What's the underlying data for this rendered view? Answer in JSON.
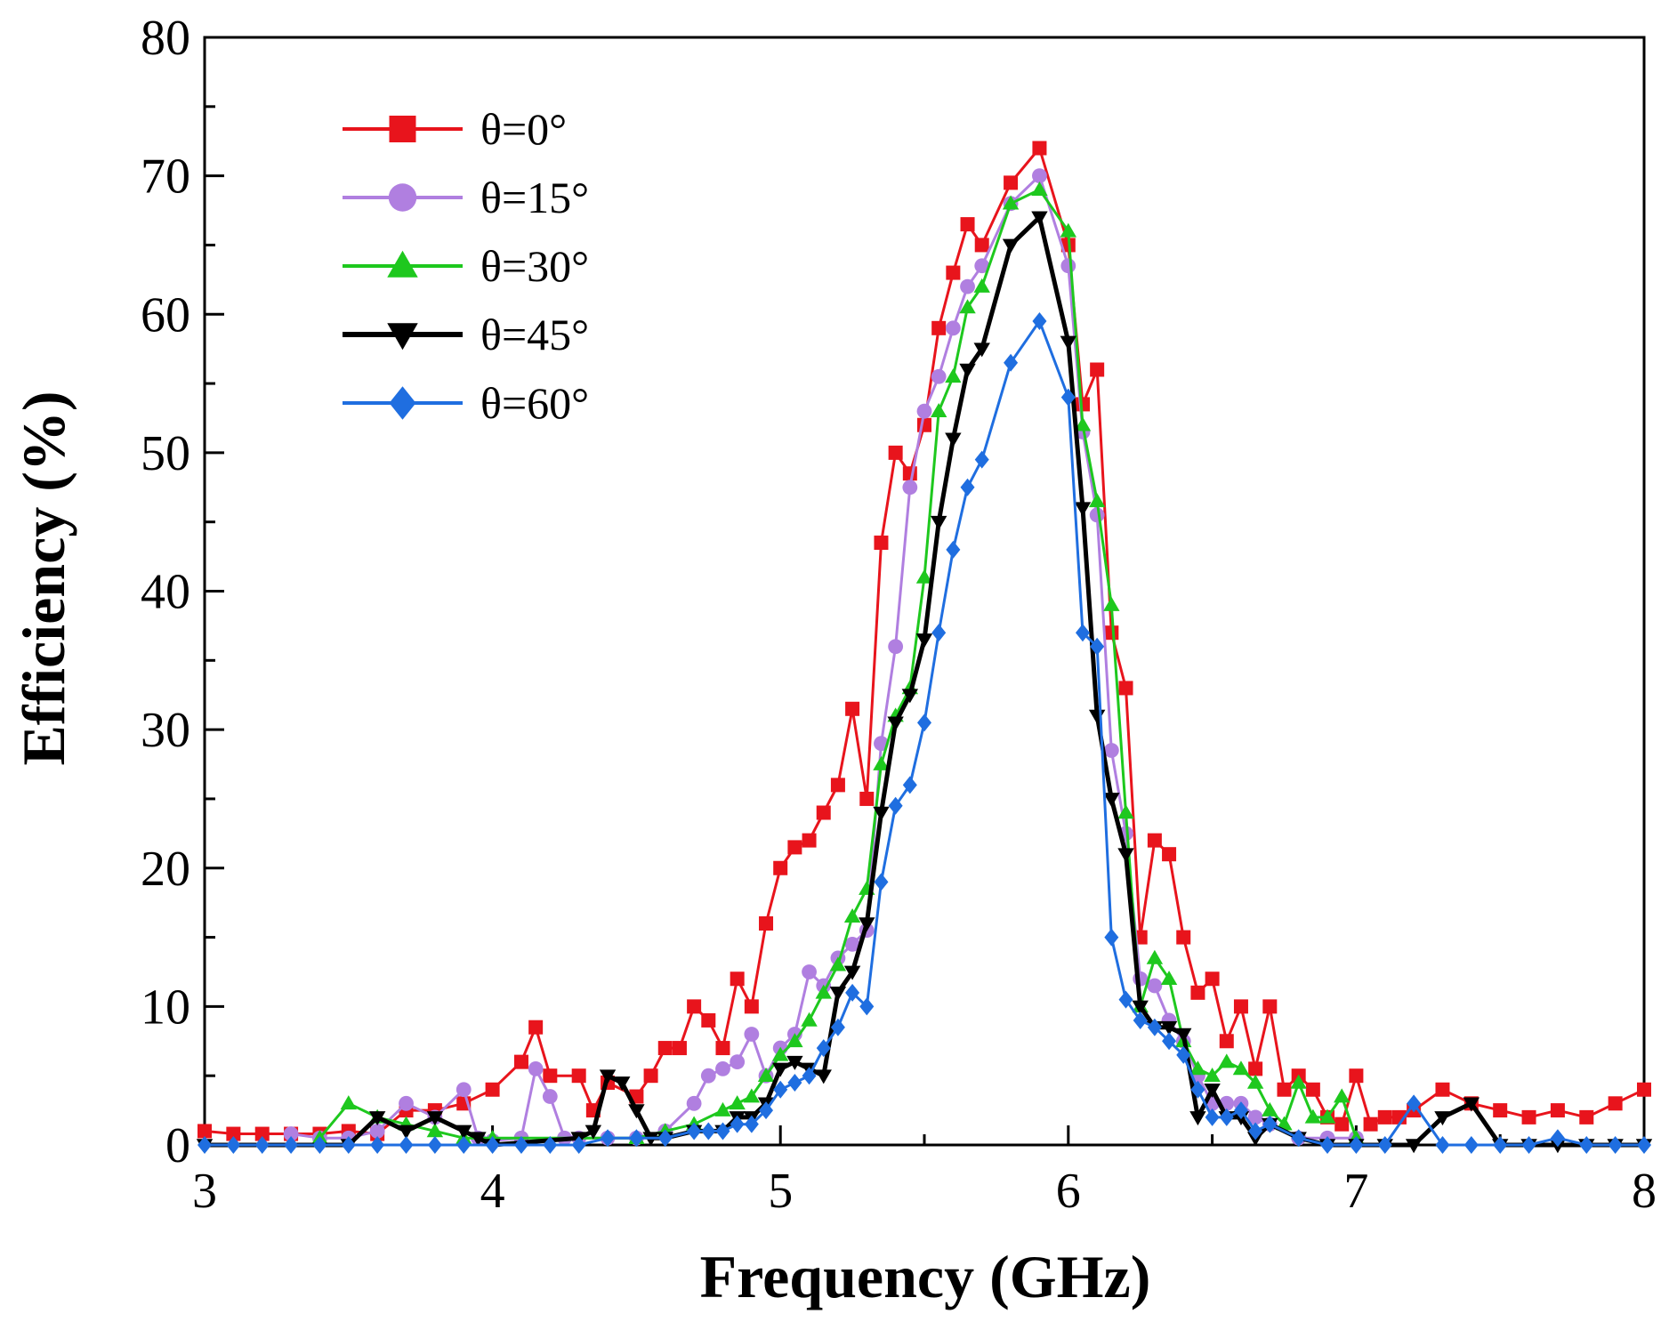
{
  "chart_data": {
    "type": "line",
    "title": "",
    "xlabel": "Frequency (GHz)",
    "ylabel": "Efficiency (%)",
    "xlim": [
      3,
      8
    ],
    "ylim": [
      0,
      80
    ],
    "xticks": [
      3,
      4,
      5,
      6,
      7,
      8
    ],
    "yticks": [
      0,
      10,
      20,
      30,
      40,
      50,
      60,
      70,
      80
    ],
    "x_minor_step": 0.5,
    "y_minor_step": 5,
    "grid": false,
    "legend_position": "top-left",
    "series": [
      {
        "name": "θ=0°",
        "color": "#e8141c",
        "marker": "square",
        "line_width": 3,
        "x": [
          3.0,
          3.1,
          3.2,
          3.3,
          3.4,
          3.5,
          3.6,
          3.7,
          3.8,
          3.9,
          4.0,
          4.1,
          4.15,
          4.2,
          4.3,
          4.35,
          4.4,
          4.5,
          4.55,
          4.6,
          4.65,
          4.7,
          4.75,
          4.8,
          4.85,
          4.9,
          4.95,
          5.0,
          5.05,
          5.1,
          5.15,
          5.2,
          5.25,
          5.3,
          5.35,
          5.4,
          5.45,
          5.5,
          5.55,
          5.6,
          5.65,
          5.7,
          5.8,
          5.9,
          6.0,
          6.05,
          6.1,
          6.15,
          6.2,
          6.25,
          6.3,
          6.35,
          6.4,
          6.45,
          6.5,
          6.55,
          6.6,
          6.65,
          6.7,
          6.75,
          6.8,
          6.85,
          6.9,
          6.95,
          7.0,
          7.05,
          7.1,
          7.15,
          7.2,
          7.3,
          7.4,
          7.5,
          7.6,
          7.7,
          7.8,
          7.9,
          8.0
        ],
        "values": [
          1.0,
          0.8,
          0.8,
          0.8,
          0.8,
          1.0,
          0.8,
          2.5,
          2.5,
          3.0,
          4.0,
          6.0,
          8.5,
          5.0,
          5.0,
          2.5,
          4.5,
          3.5,
          5.0,
          7.0,
          7.0,
          10.0,
          9.0,
          7.0,
          12.0,
          10.0,
          16.0,
          20.0,
          21.5,
          22.0,
          24.0,
          26.0,
          31.5,
          25.0,
          43.5,
          50.0,
          48.5,
          52.0,
          59.0,
          63.0,
          66.5,
          65.0,
          69.5,
          72.0,
          65.0,
          53.5,
          56.0,
          37.0,
          33.0,
          15.0,
          22.0,
          21.0,
          15.0,
          11.0,
          12.0,
          7.5,
          10.0,
          5.5,
          10.0,
          4.0,
          5.0,
          4.0,
          2.0,
          1.5,
          5.0,
          1.5,
          2.0,
          2.0,
          2.5,
          4.0,
          3.0,
          2.5,
          2.0,
          2.5,
          2.0,
          3.0,
          4.0
        ]
      },
      {
        "name": "θ=15°",
        "color": "#b07fe0",
        "marker": "circle",
        "line_width": 3,
        "x": [
          3.3,
          3.4,
          3.5,
          3.6,
          3.7,
          3.8,
          3.9,
          3.95,
          4.0,
          4.1,
          4.15,
          4.2,
          4.25,
          4.3,
          4.4,
          4.5,
          4.6,
          4.7,
          4.75,
          4.8,
          4.85,
          4.9,
          4.95,
          5.0,
          5.05,
          5.1,
          5.15,
          5.2,
          5.25,
          5.3,
          5.35,
          5.4,
          5.45,
          5.5,
          5.55,
          5.6,
          5.65,
          5.7,
          5.8,
          5.9,
          6.0,
          6.05,
          6.1,
          6.15,
          6.2,
          6.25,
          6.3,
          6.35,
          6.4,
          6.45,
          6.5,
          6.55,
          6.6,
          6.65,
          6.7,
          6.8,
          6.9,
          7.0
        ],
        "values": [
          0.8,
          0.5,
          0.5,
          1.0,
          3.0,
          2.0,
          4.0,
          0.5,
          0.3,
          0.5,
          5.5,
          3.5,
          0.5,
          0.5,
          0.5,
          0.5,
          1.0,
          3.0,
          5.0,
          5.5,
          6.0,
          8.0,
          5.0,
          7.0,
          8.0,
          12.5,
          11.5,
          13.5,
          14.5,
          15.5,
          29.0,
          36.0,
          47.5,
          53.0,
          55.5,
          59.0,
          62.0,
          63.5,
          68.0,
          70.0,
          63.5,
          51.5,
          45.5,
          28.5,
          22.5,
          12.0,
          11.5,
          9.0,
          7.5,
          5.0,
          3.0,
          3.0,
          3.0,
          2.0,
          1.5,
          0.5,
          0.5,
          0.5
        ]
      },
      {
        "name": "θ=30°",
        "color": "#1ec81e",
        "marker": "triangle-up",
        "line_width": 3,
        "x": [
          3.4,
          3.5,
          3.6,
          3.7,
          3.8,
          3.9,
          4.0,
          4.5,
          4.6,
          4.7,
          4.8,
          4.85,
          4.9,
          4.95,
          5.0,
          5.05,
          5.1,
          5.15,
          5.2,
          5.25,
          5.3,
          5.35,
          5.4,
          5.45,
          5.5,
          5.55,
          5.6,
          5.65,
          5.7,
          5.8,
          5.9,
          6.0,
          6.05,
          6.1,
          6.15,
          6.2,
          6.25,
          6.3,
          6.35,
          6.4,
          6.45,
          6.5,
          6.55,
          6.6,
          6.65,
          6.7,
          6.75,
          6.8,
          6.85,
          6.9,
          6.95,
          7.0
        ],
        "values": [
          0.5,
          3.0,
          2.0,
          1.5,
          1.0,
          0.5,
          0.5,
          0.5,
          1.0,
          1.5,
          2.5,
          3.0,
          3.5,
          5.0,
          6.5,
          7.5,
          9.0,
          11.0,
          13.0,
          16.5,
          18.5,
          27.5,
          31.0,
          33.0,
          41.0,
          53.0,
          55.5,
          60.5,
          62.0,
          68.0,
          69.0,
          66.0,
          52.0,
          46.5,
          39.0,
          24.0,
          10.0,
          13.5,
          12.0,
          7.5,
          5.5,
          5.0,
          6.0,
          5.5,
          4.5,
          2.5,
          1.5,
          4.5,
          2.0,
          2.0,
          3.5,
          0.5
        ]
      },
      {
        "name": "θ=45°",
        "color": "#000000",
        "marker": "triangle-down",
        "line_width": 5,
        "x": [
          3.0,
          3.5,
          3.6,
          3.7,
          3.8,
          3.9,
          3.95,
          4.0,
          4.3,
          4.35,
          4.4,
          4.45,
          4.5,
          4.55,
          4.6,
          4.7,
          4.8,
          4.85,
          4.9,
          4.95,
          5.0,
          5.05,
          5.1,
          5.15,
          5.2,
          5.25,
          5.3,
          5.35,
          5.4,
          5.45,
          5.5,
          5.55,
          5.6,
          5.65,
          5.7,
          5.8,
          5.9,
          6.0,
          6.05,
          6.1,
          6.15,
          6.2,
          6.25,
          6.3,
          6.35,
          6.4,
          6.45,
          6.5,
          6.55,
          6.6,
          6.65,
          6.7,
          6.8,
          6.9,
          7.0,
          7.1,
          7.2,
          7.3,
          7.4,
          7.5,
          7.6,
          7.7,
          7.8,
          7.9,
          8.0
        ],
        "values": [
          0.0,
          0.0,
          2.0,
          1.0,
          2.0,
          1.0,
          0.5,
          0.0,
          0.5,
          1.0,
          5.0,
          4.5,
          2.5,
          0.5,
          0.5,
          1.0,
          1.0,
          2.0,
          2.0,
          3.0,
          5.5,
          6.0,
          5.5,
          5.0,
          11.0,
          12.5,
          16.0,
          24.0,
          30.5,
          32.5,
          36.5,
          45.0,
          51.0,
          56.0,
          57.5,
          65.0,
          67.0,
          58.0,
          46.0,
          31.0,
          25.0,
          21.0,
          10.0,
          8.5,
          8.5,
          8.0,
          2.0,
          4.0,
          2.0,
          2.0,
          0.5,
          1.5,
          0.5,
          0.0,
          0.0,
          0.0,
          0.0,
          2.0,
          3.0,
          0.0,
          0.0,
          0.0,
          0.0,
          0.0,
          0.0
        ]
      },
      {
        "name": "θ=60°",
        "color": "#1f6ee0",
        "marker": "diamond",
        "line_width": 3,
        "x": [
          3.0,
          3.1,
          3.2,
          3.3,
          3.4,
          3.5,
          3.6,
          3.7,
          3.8,
          3.9,
          4.0,
          4.1,
          4.2,
          4.3,
          4.4,
          4.5,
          4.6,
          4.7,
          4.75,
          4.8,
          4.85,
          4.9,
          4.95,
          5.0,
          5.05,
          5.1,
          5.15,
          5.2,
          5.25,
          5.3,
          5.35,
          5.4,
          5.45,
          5.5,
          5.55,
          5.6,
          5.65,
          5.7,
          5.8,
          5.9,
          6.0,
          6.05,
          6.1,
          6.15,
          6.2,
          6.25,
          6.3,
          6.35,
          6.4,
          6.45,
          6.5,
          6.55,
          6.6,
          6.65,
          6.7,
          6.8,
          6.9,
          7.0,
          7.1,
          7.2,
          7.3,
          7.4,
          7.5,
          7.6,
          7.7,
          7.8,
          7.9,
          8.0
        ],
        "values": [
          0.0,
          0.0,
          0.0,
          0.0,
          0.0,
          0.0,
          0.0,
          0.0,
          0.0,
          0.0,
          0.0,
          0.0,
          0.0,
          0.0,
          0.5,
          0.5,
          0.5,
          1.0,
          1.0,
          1.0,
          1.5,
          1.5,
          2.5,
          4.0,
          4.5,
          5.0,
          7.0,
          8.5,
          11.0,
          10.0,
          19.0,
          24.5,
          26.0,
          30.5,
          37.0,
          43.0,
          47.5,
          49.5,
          56.5,
          59.5,
          54.0,
          37.0,
          36.0,
          15.0,
          10.5,
          9.0,
          8.5,
          7.5,
          6.5,
          4.0,
          2.0,
          2.0,
          2.5,
          1.0,
          1.5,
          0.5,
          0.0,
          0.0,
          0.0,
          3.0,
          0.0,
          0.0,
          0.0,
          0.0,
          0.5,
          0.0,
          0.0,
          0.0
        ]
      }
    ]
  }
}
